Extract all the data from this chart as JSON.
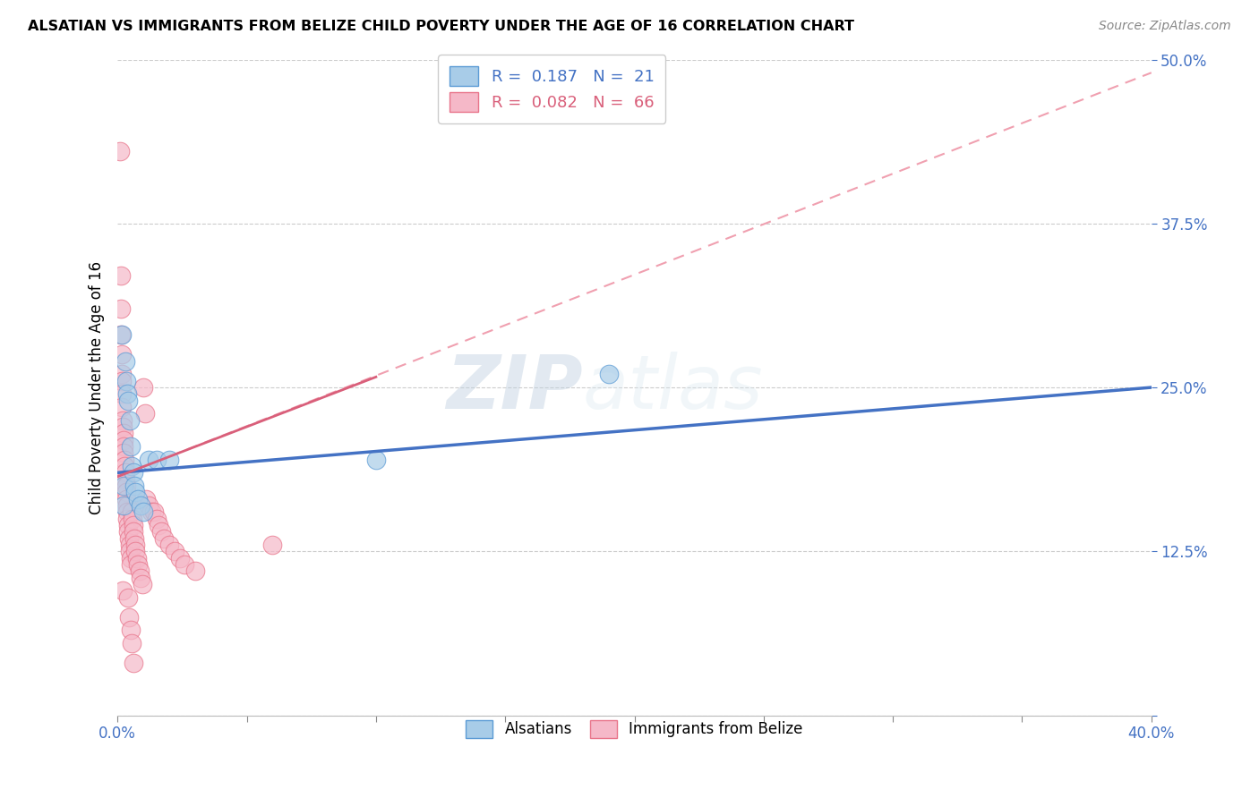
{
  "title": "ALSATIAN VS IMMIGRANTS FROM BELIZE CHILD POVERTY UNDER THE AGE OF 16 CORRELATION CHART",
  "source": "Source: ZipAtlas.com",
  "ylabel": "Child Poverty Under the Age of 16",
  "xlim": [
    0,
    0.4
  ],
  "ylim": [
    0,
    0.5
  ],
  "xticks": [
    0.0,
    0.05,
    0.1,
    0.15,
    0.2,
    0.25,
    0.3,
    0.35,
    0.4
  ],
  "xticklabels": [
    "0.0%",
    "",
    "",
    "",
    "",
    "",
    "",
    "",
    "40.0%"
  ],
  "yticks": [
    0.0,
    0.125,
    0.25,
    0.375,
    0.5
  ],
  "yticklabels": [
    "",
    "12.5%",
    "25.0%",
    "37.5%",
    "50.0%"
  ],
  "watermark_zip": "ZIP",
  "watermark_atlas": "atlas",
  "blue_color": "#a8cce8",
  "pink_color": "#f5b8c8",
  "blue_edge_color": "#5b9bd5",
  "pink_edge_color": "#e8748a",
  "blue_line_color": "#4472c4",
  "pink_line_color": "#d95f7a",
  "pink_dash_color": "#f0a0b0",
  "blue_scatter": [
    [
      0.0015,
      0.29
    ],
    [
      0.0022,
      0.175
    ],
    [
      0.0025,
      0.16
    ],
    [
      0.003,
      0.27
    ],
    [
      0.0035,
      0.255
    ],
    [
      0.0038,
      0.245
    ],
    [
      0.0042,
      0.24
    ],
    [
      0.0048,
      0.225
    ],
    [
      0.005,
      0.205
    ],
    [
      0.0055,
      0.19
    ],
    [
      0.006,
      0.185
    ],
    [
      0.0065,
      0.175
    ],
    [
      0.007,
      0.17
    ],
    [
      0.008,
      0.165
    ],
    [
      0.009,
      0.16
    ],
    [
      0.01,
      0.155
    ],
    [
      0.012,
      0.195
    ],
    [
      0.015,
      0.195
    ],
    [
      0.02,
      0.195
    ],
    [
      0.19,
      0.26
    ],
    [
      0.1,
      0.195
    ]
  ],
  "pink_scatter": [
    [
      0.001,
      0.43
    ],
    [
      0.0012,
      0.335
    ],
    [
      0.0013,
      0.31
    ],
    [
      0.0014,
      0.29
    ],
    [
      0.0015,
      0.275
    ],
    [
      0.0015,
      0.26
    ],
    [
      0.0016,
      0.255
    ],
    [
      0.0017,
      0.245
    ],
    [
      0.0018,
      0.235
    ],
    [
      0.0019,
      0.225
    ],
    [
      0.002,
      0.22
    ],
    [
      0.0022,
      0.215
    ],
    [
      0.0022,
      0.21
    ],
    [
      0.0024,
      0.205
    ],
    [
      0.0025,
      0.2
    ],
    [
      0.0026,
      0.195
    ],
    [
      0.0028,
      0.19
    ],
    [
      0.003,
      0.185
    ],
    [
      0.0032,
      0.18
    ],
    [
      0.0033,
      0.175
    ],
    [
      0.0034,
      0.17
    ],
    [
      0.0035,
      0.165
    ],
    [
      0.0036,
      0.16
    ],
    [
      0.0037,
      0.155
    ],
    [
      0.0038,
      0.15
    ],
    [
      0.004,
      0.145
    ],
    [
      0.0042,
      0.14
    ],
    [
      0.0044,
      0.135
    ],
    [
      0.0046,
      0.13
    ],
    [
      0.0048,
      0.125
    ],
    [
      0.005,
      0.12
    ],
    [
      0.0052,
      0.115
    ],
    [
      0.0055,
      0.155
    ],
    [
      0.0058,
      0.15
    ],
    [
      0.006,
      0.145
    ],
    [
      0.0062,
      0.14
    ],
    [
      0.0065,
      0.135
    ],
    [
      0.0068,
      0.13
    ],
    [
      0.007,
      0.125
    ],
    [
      0.0075,
      0.12
    ],
    [
      0.008,
      0.115
    ],
    [
      0.0085,
      0.11
    ],
    [
      0.009,
      0.105
    ],
    [
      0.0095,
      0.1
    ],
    [
      0.01,
      0.25
    ],
    [
      0.0105,
      0.23
    ],
    [
      0.011,
      0.165
    ],
    [
      0.012,
      0.16
    ],
    [
      0.013,
      0.155
    ],
    [
      0.014,
      0.155
    ],
    [
      0.015,
      0.15
    ],
    [
      0.016,
      0.145
    ],
    [
      0.017,
      0.14
    ],
    [
      0.018,
      0.135
    ],
    [
      0.02,
      0.13
    ],
    [
      0.022,
      0.125
    ],
    [
      0.024,
      0.12
    ],
    [
      0.026,
      0.115
    ],
    [
      0.03,
      0.11
    ],
    [
      0.06,
      0.13
    ],
    [
      0.002,
      0.095
    ],
    [
      0.004,
      0.09
    ],
    [
      0.0045,
      0.075
    ],
    [
      0.005,
      0.065
    ],
    [
      0.0055,
      0.055
    ],
    [
      0.006,
      0.04
    ]
  ],
  "blue_trendline": [
    [
      0.0,
      0.185
    ],
    [
      0.4,
      0.25
    ]
  ],
  "pink_trendline_solid": [
    [
      0.0,
      0.182
    ],
    [
      0.1,
      0.258
    ]
  ],
  "pink_trendline_dash": [
    [
      0.0,
      0.182
    ],
    [
      0.4,
      0.49
    ]
  ]
}
